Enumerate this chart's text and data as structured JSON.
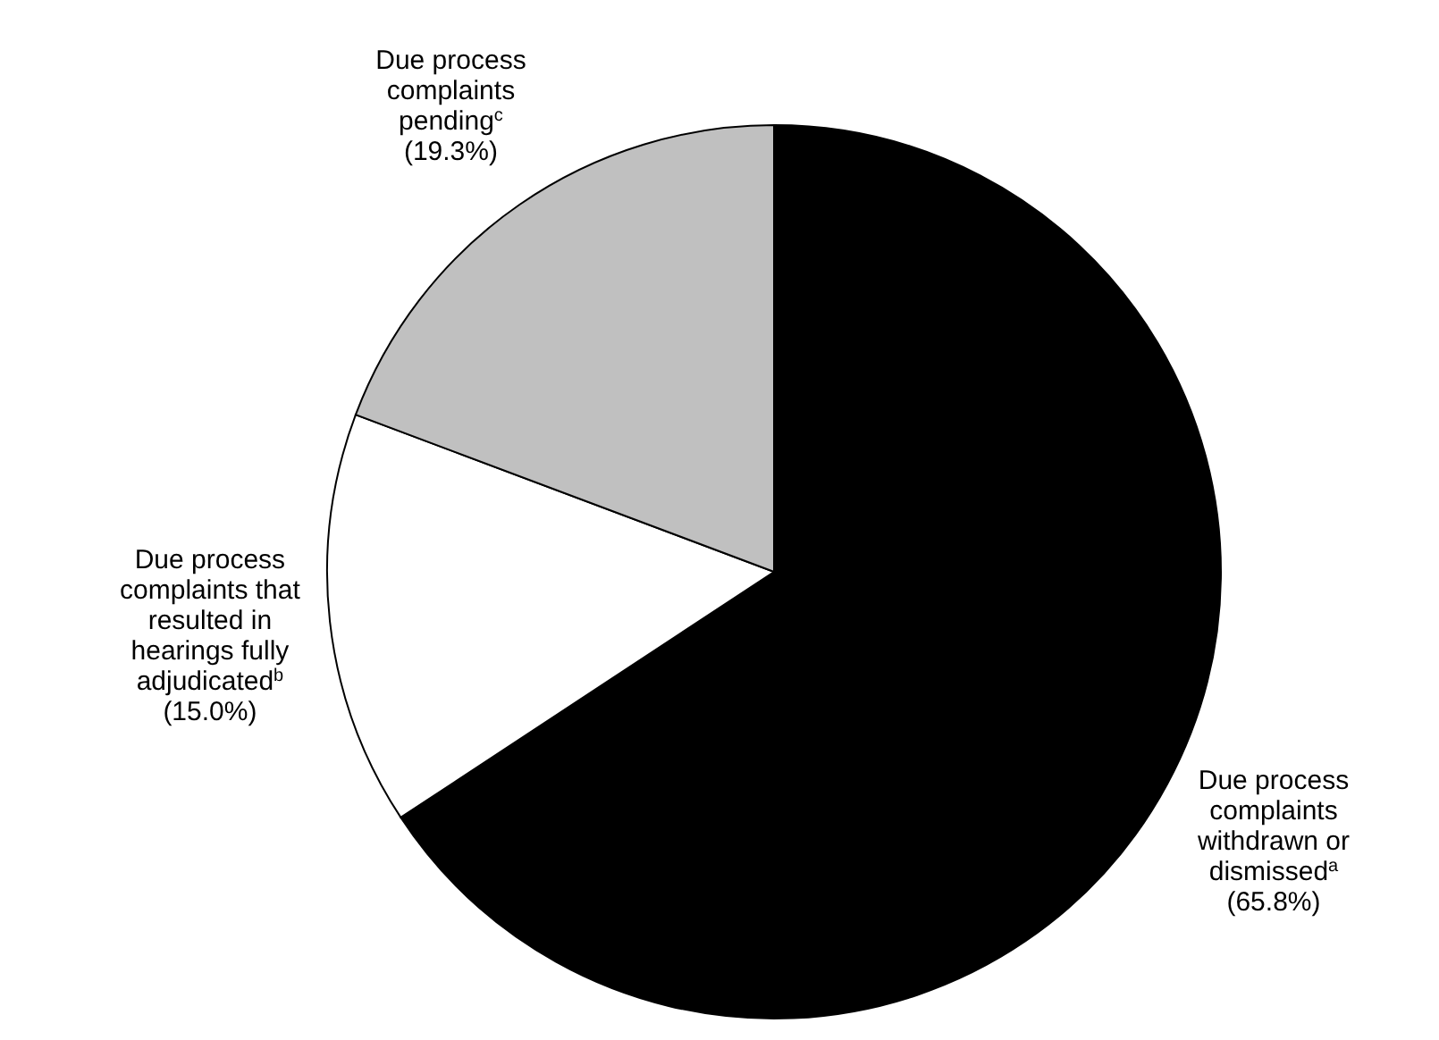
{
  "chart_data": {
    "type": "pie",
    "categories": [
      "Due process complaints withdrawn or dismissed$^{a}$",
      "Due process complaints that resulted in hearings fully adjudicated$^{b}$",
      "Due process complaints pending$^{c}$"
    ],
    "values": [
      65.8,
      15.0,
      19.3
    ],
    "colors": [
      "#000000",
      "#ffffff",
      "#c0c0c0"
    ],
    "value_labels": [
      "(65.8%)",
      "(15.0%)",
      "(19.3%)"
    ]
  }
}
